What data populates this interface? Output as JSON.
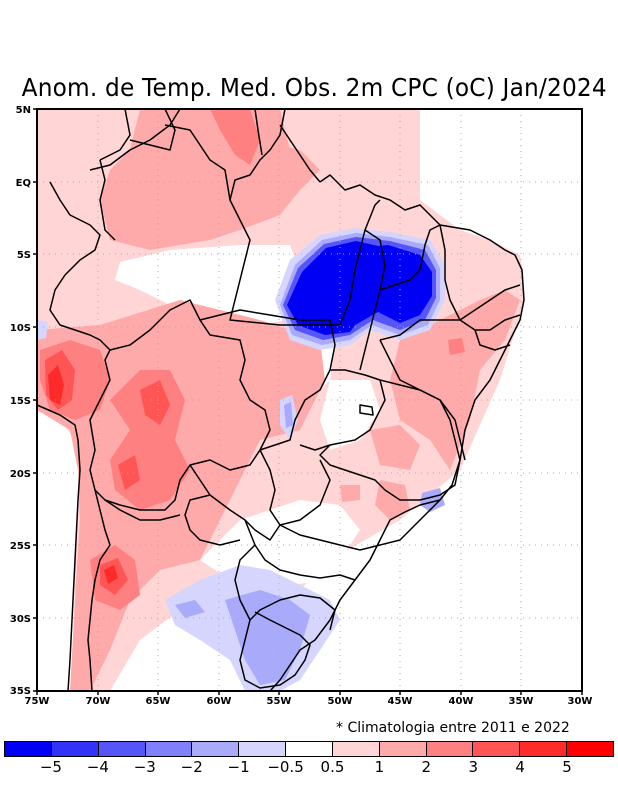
{
  "title": "Anom. de Temp. Med. Obs. 2m CPC (oC) Jan/2024",
  "note": "* Climatologia entre 2011 e 2022",
  "axes": {
    "lat_labels": [
      "5N",
      "EQ",
      "5S",
      "10S",
      "15S",
      "20S",
      "25S",
      "30S",
      "35S"
    ],
    "lon_labels": [
      "75W",
      "70W",
      "65W",
      "60W",
      "55W",
      "50W",
      "45W",
      "40W",
      "35W",
      "30W"
    ],
    "lat_range": [
      5,
      -35
    ],
    "lon_range": [
      -75,
      -30
    ]
  },
  "colorbar": {
    "colors": [
      "#0000f5",
      "#3333f7",
      "#5555f8",
      "#8080fa",
      "#aaaafb",
      "#d5d5fd",
      "#ffffff",
      "#ffd5d5",
      "#ffaaaa",
      "#ff8080",
      "#ff5555",
      "#ff2a2a",
      "#ff0000"
    ],
    "labels": [
      "-5",
      "-4",
      "-3",
      "-2",
      "-1",
      "-0.5",
      "0.5",
      "1",
      "2",
      "3",
      "4",
      "5"
    ]
  },
  "chart_data": {
    "type": "heatmap",
    "title": "Anom. de Temp. Med. Obs. 2m CPC (oC) Jan/2024",
    "units": "oC",
    "levels": [
      -5,
      -4,
      -3,
      -2,
      -1,
      -0.5,
      0.5,
      1,
      2,
      3,
      4,
      5
    ],
    "grid": true,
    "features": [
      {
        "region": "Para/Maranhao/Tocantins (around 50W-45W, 5S-10S)",
        "anomaly": -5
      },
      {
        "region": "Southern Brazil/Uruguay/NE Argentina (around 63W-50W, 28S-35S)",
        "anomaly": -1
      },
      {
        "region": "Peru/Bolivia/Paraguay/Chaco (around 75W-60W, 10S-22S)",
        "anomaly": 3
      },
      {
        "region": "NW Argentina (around 68W, 27S)",
        "anomaly": 4
      },
      {
        "region": "Amazon/Venezuela/Guianas (around 70W-50W, 5N-5S)",
        "anomaly": 1
      }
    ]
  }
}
